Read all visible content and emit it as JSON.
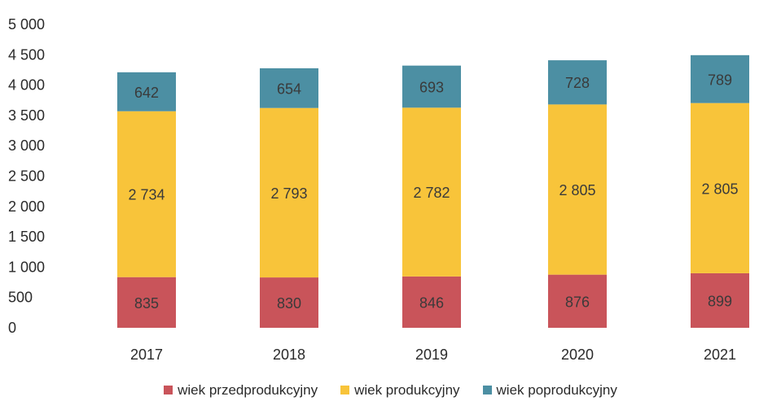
{
  "chart_data": {
    "type": "bar",
    "stacked": true,
    "categories": [
      "2017",
      "2018",
      "2019",
      "2020",
      "2021"
    ],
    "series": [
      {
        "name": "wiek przedprodukcyjny",
        "color": "#c9545a",
        "values": [
          835,
          830,
          846,
          876,
          899
        ]
      },
      {
        "name": "wiek produkcyjny",
        "color": "#f8c43a",
        "values": [
          2734,
          2793,
          2782,
          2805,
          2805
        ]
      },
      {
        "name": "wiek poprodukcyjny",
        "color": "#4c8fa3",
        "values": [
          642,
          654,
          693,
          728,
          789
        ]
      }
    ],
    "value_labels": [
      [
        "835",
        "830",
        "846",
        "876",
        "899"
      ],
      [
        "2 734",
        "2 793",
        "2 782",
        "2 805",
        "2 805"
      ],
      [
        "642",
        "654",
        "693",
        "728",
        "789"
      ]
    ],
    "y_ticks": [
      "0",
      "500",
      "1 000",
      "1 500",
      "2 000",
      "2 500",
      "3 000",
      "3 500",
      "4 000",
      "4 500",
      "5 000"
    ],
    "ylim": [
      0,
      5000
    ],
    "grid": false,
    "legend_position": "bottom"
  }
}
